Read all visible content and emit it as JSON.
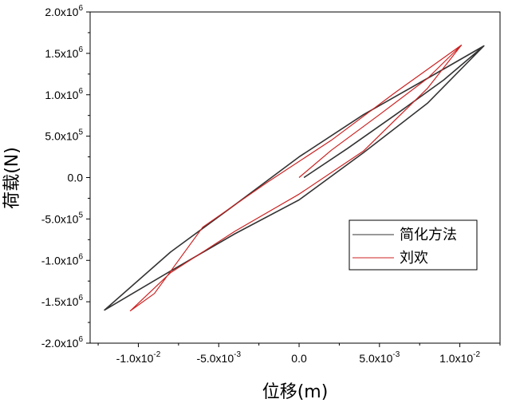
{
  "chart_data": {
    "type": "line",
    "title": "",
    "xlabel": "位移(m)",
    "ylabel": "荷载(N)",
    "xlim": [
      -0.013,
      0.0125
    ],
    "ylim": [
      -2000000,
      2000000
    ],
    "grid": false,
    "legend_position": "lower-right",
    "x_ticks": [
      {
        "value": -0.01,
        "mantissa": "-1.0x10",
        "exp": "-2"
      },
      {
        "value": -0.005,
        "mantissa": "-5.0x10",
        "exp": "-3"
      },
      {
        "value": 0,
        "mantissa": "0.0",
        "exp": ""
      },
      {
        "value": 0.005,
        "mantissa": "5.0x10",
        "exp": "-3"
      },
      {
        "value": 0.01,
        "mantissa": "1.0x10",
        "exp": "-2"
      }
    ],
    "y_ticks": [
      {
        "value": 2000000,
        "mantissa": "2.0x10",
        "exp": "6"
      },
      {
        "value": 1500000,
        "mantissa": "1.5x10",
        "exp": "6"
      },
      {
        "value": 1000000,
        "mantissa": "1.0x10",
        "exp": "6"
      },
      {
        "value": 500000,
        "mantissa": "5.0x10",
        "exp": "5"
      },
      {
        "value": 0,
        "mantissa": "0.0",
        "exp": ""
      },
      {
        "value": -500000,
        "mantissa": "-5.0x10",
        "exp": "5"
      },
      {
        "value": -1000000,
        "mantissa": "-1.0x10",
        "exp": "6"
      },
      {
        "value": -1500000,
        "mantissa": "-1.5x10",
        "exp": "6"
      },
      {
        "value": -2000000,
        "mantissa": "-2.0x10",
        "exp": "6"
      }
    ],
    "series": [
      {
        "name": "简化方法",
        "color": "#333333",
        "points": [
          [
            0.0003,
            0
          ],
          [
            0.003,
            350000
          ],
          [
            0.006,
            760000
          ],
          [
            0.009,
            1180000
          ],
          [
            0.0115,
            1590000
          ],
          [
            0.008,
            900000
          ],
          [
            0.004,
            300000
          ],
          [
            0.0,
            -270000
          ],
          [
            -0.004,
            -680000
          ],
          [
            -0.008,
            -1130000
          ],
          [
            -0.0121,
            -1600000
          ],
          [
            -0.008,
            -900000
          ],
          [
            -0.004,
            -330000
          ],
          [
            0.0,
            250000
          ],
          [
            0.004,
            760000
          ],
          [
            0.008,
            1200000
          ],
          [
            0.0115,
            1590000
          ]
        ]
      },
      {
        "name": "刘欢",
        "color": "#cc2222",
        "points": [
          [
            0.0,
            0
          ],
          [
            0.002,
            330000
          ],
          [
            0.005,
            760000
          ],
          [
            0.008,
            1200000
          ],
          [
            0.0101,
            1600000
          ],
          [
            0.008,
            1080000
          ],
          [
            0.004,
            320000
          ],
          [
            0.0,
            -200000
          ],
          [
            -0.004,
            -650000
          ],
          [
            -0.008,
            -1150000
          ],
          [
            -0.0105,
            -1610000
          ],
          [
            -0.009,
            -1400000
          ],
          [
            -0.006,
            -600000
          ],
          [
            -0.002,
            -60000
          ],
          [
            0.002,
            450000
          ],
          [
            0.006,
            1030000
          ],
          [
            0.0101,
            1600000
          ]
        ]
      }
    ]
  }
}
